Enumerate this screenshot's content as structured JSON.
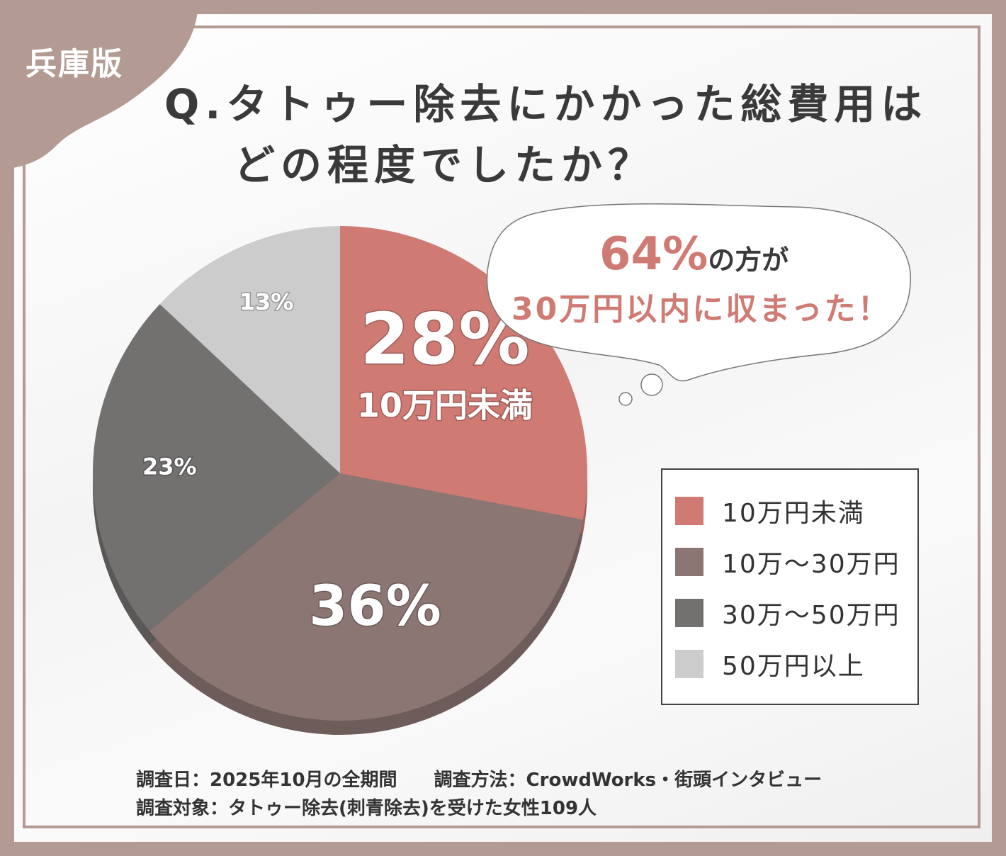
{
  "badge": "兵庫版",
  "title_line1": "Q.タトゥー除去にかかった総費用は",
  "title_line2": "どの程度でしたか？",
  "callout": {
    "highlight": "64%",
    "text1": "の方が",
    "text2": "30万円以内に収まった！"
  },
  "chart_data": {
    "type": "pie",
    "start": "top",
    "direction": "clockwise",
    "categories": [
      "10万円未満",
      "10万〜30万円",
      "30万〜50万円",
      "50万円以上"
    ],
    "values": [
      28,
      36,
      23,
      13
    ],
    "labels": [
      "28%",
      "36%",
      "23%",
      "13%"
    ],
    "featured_label": "10万円未満",
    "colors": [
      "#d07a74",
      "#8c7673",
      "#737070",
      "#cccccc"
    ],
    "legend": "right"
  },
  "legend_items": [
    "10万円未満",
    "10万〜30万円",
    "30万〜50万円",
    "50万円以上"
  ],
  "footer": {
    "date": "調査日：2025年10月の全期間",
    "method": "調査方法：CrowdWorks・街頭インタビュー",
    "target": "調査対象：タトゥー除去(刺青除去)を受けた女性109人"
  }
}
